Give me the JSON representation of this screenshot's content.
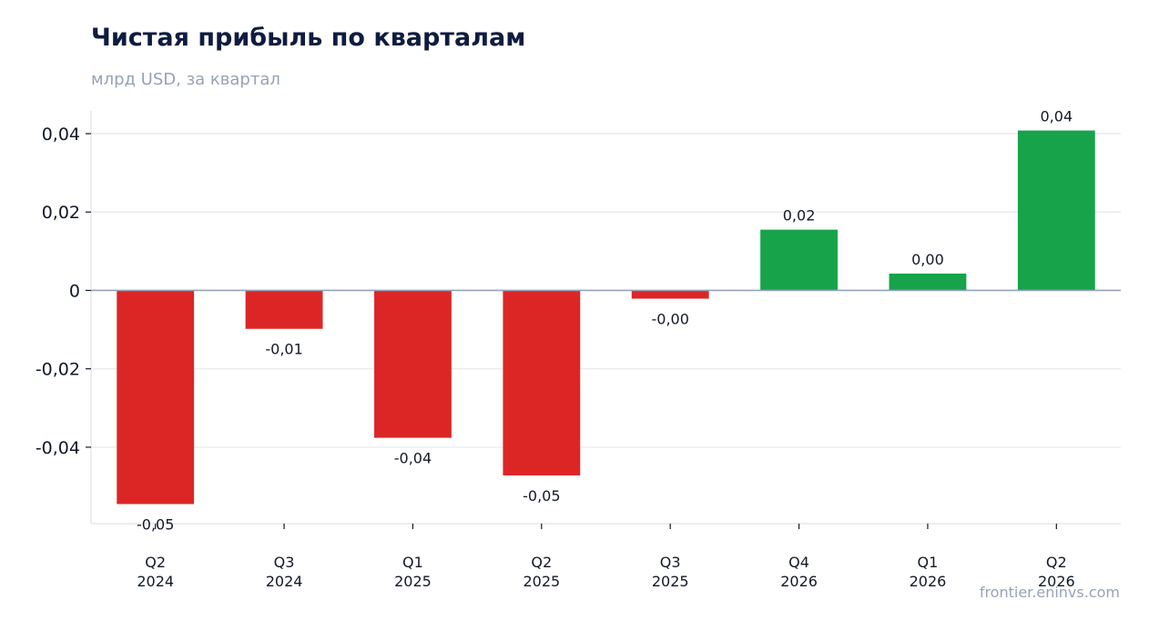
{
  "chart_data": {
    "type": "bar",
    "title": "Чистая прибыль по кварталам",
    "subtitle": "млрд USD, за квартал",
    "source": "frontier.eninvs.com",
    "categories": [
      [
        "Q2",
        "2024"
      ],
      [
        "Q3",
        "2024"
      ],
      [
        "Q1",
        "2025"
      ],
      [
        "Q2",
        "2025"
      ],
      [
        "Q3",
        "2025"
      ],
      [
        "Q4",
        "2026"
      ],
      [
        "Q1",
        "2026"
      ],
      [
        "Q2",
        "2026"
      ]
    ],
    "values": [
      -0.0545,
      -0.0098,
      -0.0376,
      -0.0472,
      -0.0021,
      0.0155,
      0.0043,
      0.0408
    ],
    "data_labels": [
      "-0,05",
      "-0,01",
      "-0,04",
      "-0,05",
      "-0,00",
      "0,02",
      "0,00",
      "0,04"
    ],
    "ylim": [
      -0.0595,
      0.0458
    ],
    "yticks": [
      -0.04,
      -0.02,
      0,
      0.02,
      0.04
    ],
    "ytick_labels": [
      "-0,04",
      "-0,02",
      "0",
      "0,02",
      "0,04"
    ],
    "colors": {
      "positive": "#16a34a",
      "negative": "#dc2626",
      "zero_line": "#94a3b8",
      "grid": "#e5e7eb"
    },
    "grid": true,
    "legend": "none",
    "xlabel": "",
    "ylabel": ""
  }
}
